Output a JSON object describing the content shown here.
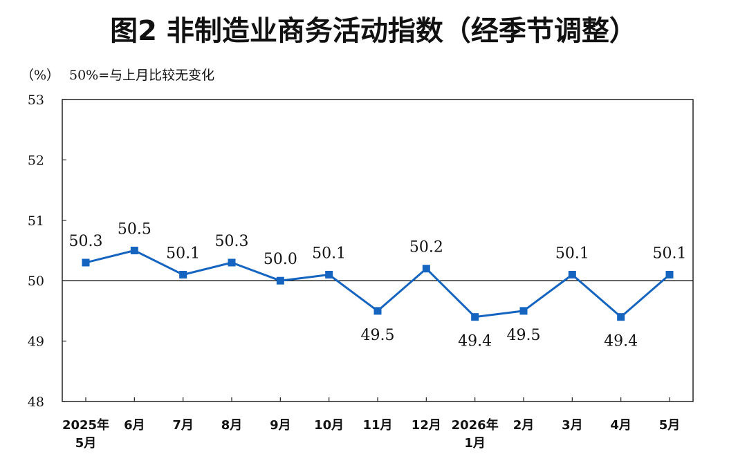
{
  "chart_data": {
    "type": "line",
    "title": "图2  非制造业商务活动指数（经季节调整）",
    "unit_note": "（%）",
    "reference_note": "50%=与上月比较无变化",
    "x": [
      [
        "2025年",
        "5月"
      ],
      [
        "6月"
      ],
      [
        "7月"
      ],
      [
        "8月"
      ],
      [
        "9月"
      ],
      [
        "10月"
      ],
      [
        "11月"
      ],
      [
        "12月"
      ],
      [
        "2026年",
        "1月"
      ],
      [
        "2月"
      ],
      [
        "3月"
      ],
      [
        "4月"
      ],
      [
        "5月"
      ]
    ],
    "series": [
      {
        "values": [
          50.3,
          50.5,
          50.1,
          50.3,
          50.0,
          50.1,
          49.5,
          50.2,
          49.4,
          49.5,
          50.1,
          49.4,
          50.1
        ],
        "labels": [
          "50.3",
          "50.5",
          "50.1",
          "50.3",
          "50.0",
          "50.1",
          "49.5",
          "50.2",
          "49.4",
          "49.5",
          "50.1",
          "49.4",
          "50.1"
        ],
        "label_position": [
          "above",
          "above",
          "above",
          "above",
          "above",
          "above",
          "below",
          "above",
          "below",
          "below",
          "above",
          "below",
          "above"
        ],
        "color": "#1565C0"
      }
    ],
    "ylim": [
      48,
      53
    ],
    "yticks": [
      48,
      49,
      50,
      51,
      52,
      53
    ],
    "reference_line": 50,
    "grid": false,
    "legend": "none"
  }
}
